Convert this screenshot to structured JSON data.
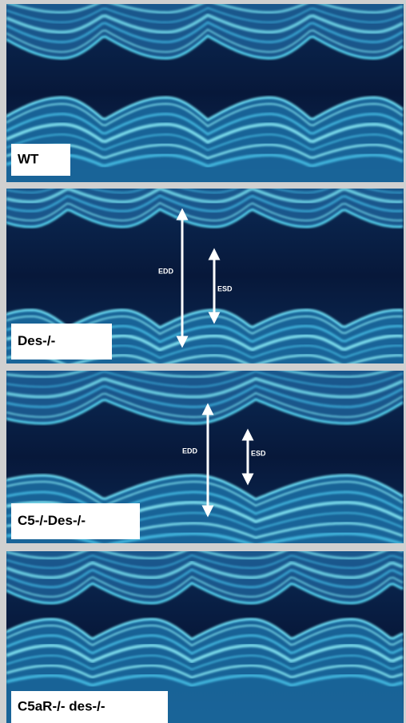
{
  "panels": [
    {
      "label": "WT"
    },
    {
      "label": "Des-/-",
      "annotations": [
        "EDD",
        "ESD"
      ]
    },
    {
      "label": "C5-/-Des-/-",
      "annotations": [
        "EDD",
        "ESD"
      ]
    },
    {
      "label": "C5aR-/- des-/-"
    }
  ]
}
